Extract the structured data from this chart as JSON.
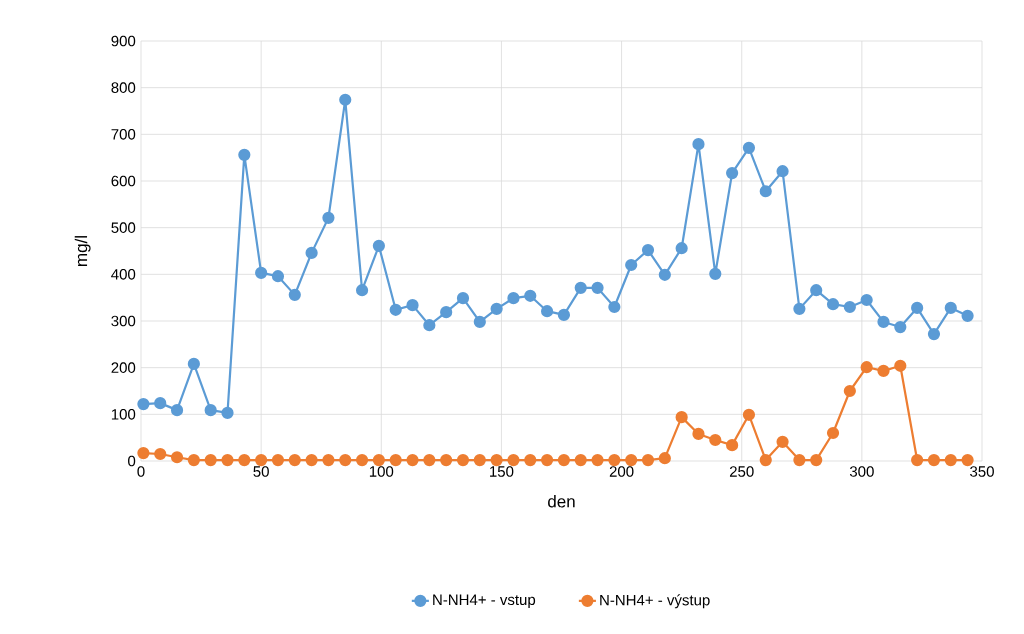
{
  "chart_data": {
    "type": "line",
    "xlabel": "den",
    "ylabel": "mg/l",
    "x": [
      1,
      8,
      15,
      22,
      29,
      36,
      43,
      50,
      57,
      64,
      71,
      78,
      85,
      92,
      99,
      106,
      113,
      120,
      127,
      134,
      141,
      148,
      155,
      162,
      169,
      176,
      183,
      190,
      197,
      204,
      211,
      218,
      225,
      232,
      239,
      246,
      253,
      260,
      267,
      274,
      281,
      288,
      295,
      302,
      309,
      316,
      323,
      330,
      337,
      344
    ],
    "series": [
      {
        "name": "N-NH4+ - vstup",
        "color": "#5b9bd5",
        "values": [
          122,
          124,
          109,
          208,
          109,
          103,
          656,
          403,
          396,
          356,
          446,
          521,
          774,
          366,
          461,
          324,
          334,
          291,
          319,
          349,
          298,
          326,
          349,
          354,
          321,
          313,
          371,
          371,
          330,
          420,
          452,
          399,
          456,
          679,
          401,
          617,
          671,
          578,
          621,
          326,
          366,
          336,
          330,
          345,
          298,
          287,
          328,
          272,
          328,
          311
        ]
      },
      {
        "name": "N-NH4+ - výstup",
        "color": "#ed7d31",
        "values": [
          17,
          15,
          8,
          2,
          2,
          2,
          2,
          2,
          2,
          2,
          2,
          2,
          2,
          2,
          2,
          2,
          2,
          2,
          2,
          2,
          2,
          2,
          2,
          2,
          2,
          2,
          2,
          2,
          2,
          2,
          2,
          6,
          94,
          58,
          45,
          34,
          99,
          2,
          41,
          2,
          2,
          60,
          150,
          201,
          193,
          204,
          2,
          2,
          2,
          2
        ]
      }
    ],
    "xlim": [
      0,
      350
    ],
    "xticks": [
      0,
      50,
      100,
      150,
      200,
      250,
      300,
      350
    ],
    "ylim": [
      0,
      900
    ],
    "yticks": [
      0,
      100,
      200,
      300,
      400,
      500,
      600,
      700,
      800,
      900
    ],
    "grid": true,
    "legend": "bottom",
    "marker": "circle",
    "line_style": "solid"
  }
}
